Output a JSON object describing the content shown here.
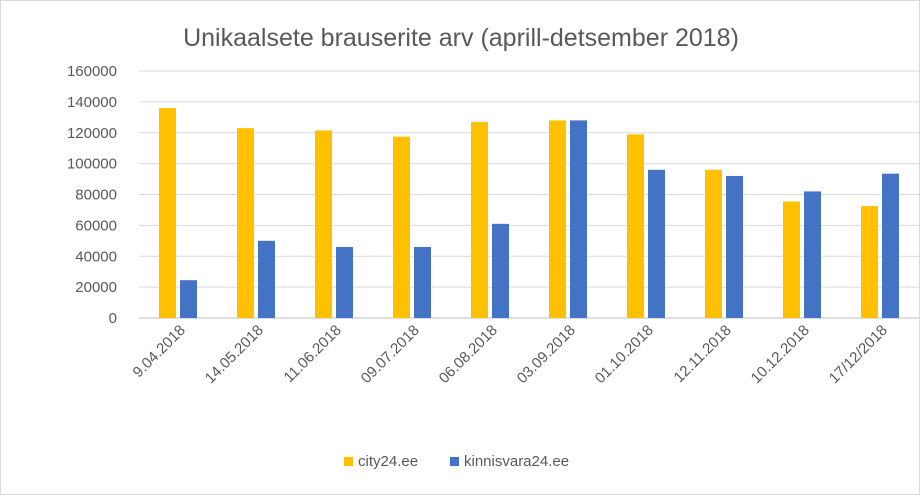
{
  "chart_data": {
    "type": "bar",
    "title": "Unikaalsete brauserite arv (aprill-detsember 2018)",
    "xlabel": "",
    "ylabel": "",
    "ylim": [
      0,
      160000
    ],
    "yticks": [
      0,
      20000,
      40000,
      60000,
      80000,
      100000,
      120000,
      140000,
      160000
    ],
    "grid": true,
    "legend_position": "bottom",
    "categories": [
      "9.04.2018",
      "14.05.2018",
      "11.06.2018",
      "09.07.2018",
      "06.08.2018",
      "03.09.2018",
      "01.10.2018",
      "12.11.2018",
      "10.12.2018",
      "17/12/2018"
    ],
    "series": [
      {
        "name": "city24.ee",
        "color": "#FFC000",
        "values": [
          136000,
          123000,
          121500,
          117500,
          127000,
          128000,
          119000,
          96000,
          75500,
          72500
        ]
      },
      {
        "name": "kinnisvara24.ee",
        "color": "#4472C4",
        "values": [
          24500,
          50000,
          46000,
          46000,
          61000,
          128000,
          96000,
          92000,
          82000,
          93500
        ]
      }
    ]
  }
}
